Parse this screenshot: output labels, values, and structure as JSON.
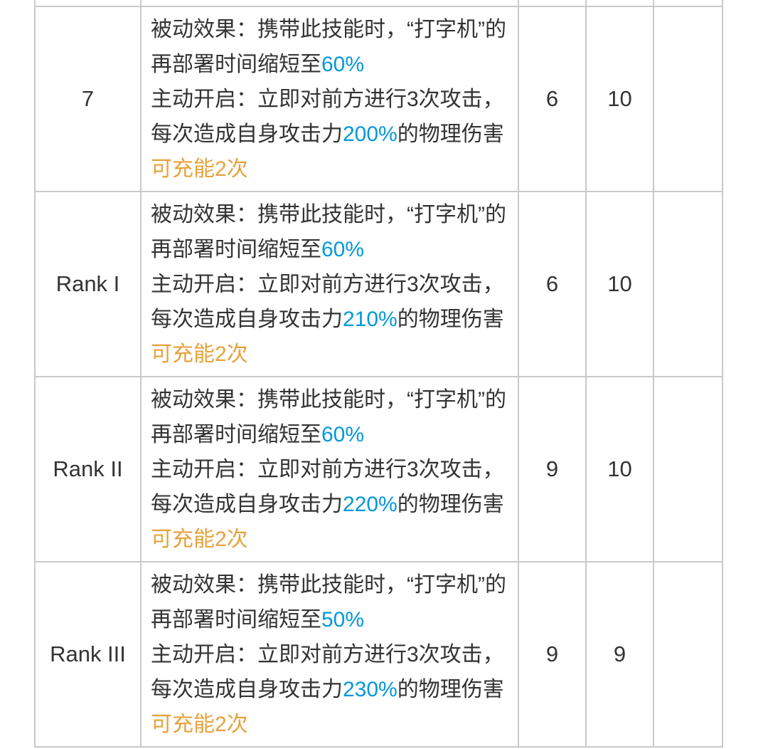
{
  "colors": {
    "text": "#333333",
    "highlight_blue": "#0098DC",
    "highlight_orange": "#E6A23C",
    "border": "#C9C9C9",
    "background": "#FFFFFF"
  },
  "skill_table": {
    "rows": [
      {
        "rank": "7",
        "cells": [
          "6",
          "10",
          ""
        ],
        "description": [
          {
            "text": "被动效果：携带此技能时，“打字机”的\n再部署时间缩短至",
            "style": "normal"
          },
          {
            "text": "60%",
            "style": "blue"
          },
          {
            "text": "\n主动开启：立即对前方进行3次攻击，\n每次造成自身攻击力",
            "style": "normal"
          },
          {
            "text": "200%",
            "style": "blue"
          },
          {
            "text": "的物理伤害\n",
            "style": "normal"
          },
          {
            "text": "可充能2次",
            "style": "orange"
          }
        ]
      },
      {
        "rank": "Rank I",
        "cells": [
          "6",
          "10",
          ""
        ],
        "description": [
          {
            "text": "被动效果：携带此技能时，“打字机”的\n再部署时间缩短至",
            "style": "normal"
          },
          {
            "text": "60%",
            "style": "blue"
          },
          {
            "text": "\n主动开启：立即对前方进行3次攻击，\n每次造成自身攻击力",
            "style": "normal"
          },
          {
            "text": "210%",
            "style": "blue"
          },
          {
            "text": "的物理伤害\n",
            "style": "normal"
          },
          {
            "text": "可充能2次",
            "style": "orange"
          }
        ]
      },
      {
        "rank": "Rank II",
        "cells": [
          "9",
          "10",
          ""
        ],
        "description": [
          {
            "text": "被动效果：携带此技能时，“打字机”的\n再部署时间缩短至",
            "style": "normal"
          },
          {
            "text": "60%",
            "style": "blue"
          },
          {
            "text": "\n主动开启：立即对前方进行3次攻击，\n每次造成自身攻击力",
            "style": "normal"
          },
          {
            "text": "220%",
            "style": "blue"
          },
          {
            "text": "的物理伤害\n",
            "style": "normal"
          },
          {
            "text": "可充能2次",
            "style": "orange"
          }
        ]
      },
      {
        "rank": "Rank III",
        "cells": [
          "9",
          "9",
          ""
        ],
        "description": [
          {
            "text": "被动效果：携带此技能时，“打字机”的\n再部署时间缩短至",
            "style": "normal"
          },
          {
            "text": "50%",
            "style": "blue"
          },
          {
            "text": "\n主动开启：立即对前方进行3次攻击，\n每次造成自身攻击力",
            "style": "normal"
          },
          {
            "text": "230%",
            "style": "blue"
          },
          {
            "text": "的物理伤害\n",
            "style": "normal"
          },
          {
            "text": "可充能2次",
            "style": "orange"
          }
        ]
      }
    ]
  }
}
